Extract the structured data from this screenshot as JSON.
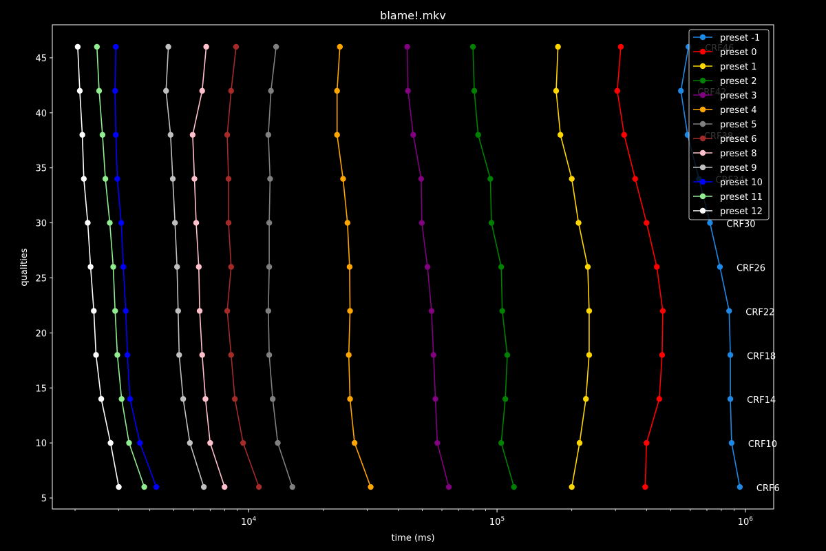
{
  "chart_data": {
    "type": "line",
    "title": "blame!.mkv",
    "xlabel": "time (ms)",
    "ylabel": "qualities",
    "xscale": "log",
    "xlim": [
      1620,
      1300000
    ],
    "ylim": [
      4,
      48
    ],
    "x_ticks": [
      {
        "value": 10000,
        "base": "10",
        "exp": "4"
      },
      {
        "value": 100000,
        "base": "10",
        "exp": "5"
      },
      {
        "value": 1000000,
        "base": "10",
        "exp": "6"
      }
    ],
    "y_ticks": [
      5,
      10,
      15,
      20,
      25,
      30,
      35,
      40,
      45
    ],
    "grid": false,
    "legend_position": "top-right",
    "y": [
      46,
      42,
      38,
      34,
      30,
      26,
      22,
      18,
      14,
      10,
      6
    ],
    "point_labels": [
      "CRF46",
      "CRF42",
      "CRF38",
      "CRF34",
      "CRF30",
      "CRF26",
      "CRF22",
      "CRF18",
      "CRF14",
      "CRF10",
      "CRF6"
    ],
    "series": [
      {
        "name": "preset -1",
        "color": "#1e88e5",
        "x": [
          590000,
          550000,
          585000,
          650000,
          720000,
          790000,
          860000,
          870000,
          870000,
          880000,
          950000
        ]
      },
      {
        "name": "preset 0",
        "color": "#ff0000",
        "x": [
          315000,
          305000,
          325000,
          360000,
          400000,
          440000,
          465000,
          462000,
          450000,
          400000,
          395000
        ]
      },
      {
        "name": "preset 1",
        "color": "#ffd700",
        "x": [
          176000,
          173000,
          180000,
          200000,
          213000,
          232000,
          235000,
          235000,
          228000,
          215000,
          200000
        ]
      },
      {
        "name": "preset 2",
        "color": "#008000",
        "x": [
          80000,
          81000,
          84000,
          94000,
          95000,
          104000,
          105000,
          110000,
          108000,
          104000,
          117000
        ]
      },
      {
        "name": "preset 3",
        "color": "#800080",
        "x": [
          43500,
          43800,
          46000,
          49500,
          49800,
          52500,
          54500,
          55500,
          56500,
          57500,
          64000
        ]
      },
      {
        "name": "preset 4",
        "color": "#ffa500",
        "x": [
          23300,
          22700,
          22700,
          24000,
          25000,
          25500,
          25600,
          25300,
          25600,
          26700,
          31000
        ]
      },
      {
        "name": "preset 5",
        "color": "#808080",
        "x": [
          12900,
          12300,
          12000,
          12200,
          12100,
          12100,
          12000,
          12100,
          12500,
          13100,
          15000
        ]
      },
      {
        "name": "preset 6",
        "color": "#a52a2a",
        "x": [
          8900,
          8500,
          8200,
          8300,
          8300,
          8500,
          8200,
          8500,
          8800,
          9500,
          11000
        ]
      },
      {
        "name": "preset 8",
        "color": "#ffc0cb",
        "x": [
          6750,
          6500,
          5950,
          6050,
          6150,
          6300,
          6350,
          6500,
          6700,
          7000,
          8000
        ]
      },
      {
        "name": "preset 9",
        "color": "#c0c0c0",
        "x": [
          4750,
          4650,
          4850,
          4950,
          5050,
          5150,
          5200,
          5250,
          5450,
          5800,
          6600
        ]
      },
      {
        "name": "preset 10",
        "color": "#0000ff",
        "x": [
          2920,
          2900,
          2920,
          2960,
          3070,
          3130,
          3200,
          3250,
          3330,
          3650,
          4250
        ]
      },
      {
        "name": "preset 11",
        "color": "#90ee90",
        "x": [
          2450,
          2500,
          2580,
          2650,
          2760,
          2850,
          2900,
          2960,
          3080,
          3300,
          3800
        ]
      },
      {
        "name": "preset 12",
        "color": "#ffffff",
        "x": [
          2050,
          2090,
          2140,
          2170,
          2250,
          2310,
          2380,
          2430,
          2550,
          2780,
          3000
        ]
      }
    ]
  }
}
